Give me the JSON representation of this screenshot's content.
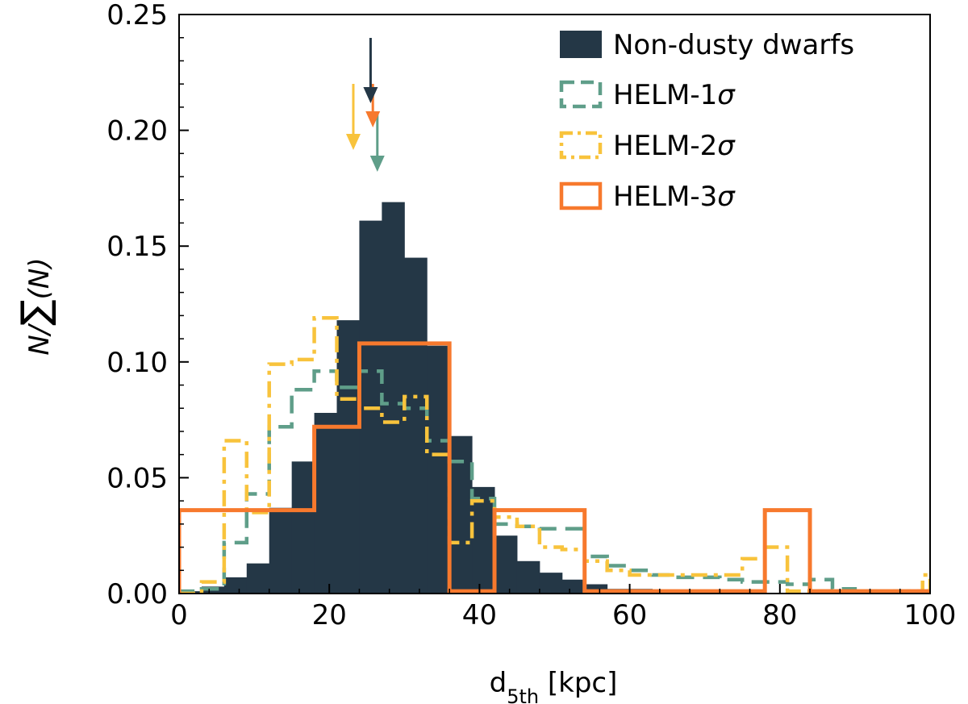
{
  "chart_data": {
    "type": "histogram",
    "xlabel_main": "d",
    "xlabel_sub": "5th",
    "xlabel_unit": " [kpc]",
    "ylabel_main": "N/",
    "ylabel_sum": "∑",
    "ylabel_tail": "(N)",
    "xlim": [
      0,
      100
    ],
    "ylim": [
      0,
      0.25
    ],
    "x_ticks": [
      "0",
      "20",
      "40",
      "60",
      "80",
      "100"
    ],
    "y_ticks": [
      "0.00",
      "0.05",
      "0.10",
      "0.15",
      "0.20",
      "0.25"
    ],
    "colors": {
      "dark": "#243746",
      "green": "#5f9e89",
      "yellow": "#f8c33c",
      "orange": "#f7792d"
    },
    "legend": [
      {
        "label": "Non-dusty dwarfs",
        "sigma": "",
        "style": "filled"
      },
      {
        "label": "HELM-1",
        "sigma": "σ",
        "style": "dashed"
      },
      {
        "label": "HELM-2",
        "sigma": "σ",
        "style": "dashdot"
      },
      {
        "label": "HELM-3",
        "sigma": "σ",
        "style": "solid"
      }
    ],
    "series": [
      {
        "name": "Non-dusty dwarfs",
        "style": "filled",
        "bin_edges": [
          0,
          3,
          6,
          9,
          12,
          15,
          18,
          21,
          24,
          27,
          30,
          33,
          36,
          39,
          42,
          45,
          48,
          51,
          54,
          57,
          60,
          63,
          66,
          69,
          72,
          75,
          78,
          81,
          84,
          87,
          90,
          93,
          96,
          99
        ],
        "values": [
          0.001,
          0.003,
          0.007,
          0.013,
          0.037,
          0.057,
          0.078,
          0.118,
          0.161,
          0.169,
          0.145,
          0.107,
          0.068,
          0.046,
          0.025,
          0.014,
          0.009,
          0.006,
          0.004,
          0.002,
          0.002,
          0.001,
          0.001,
          0.0005,
          0.0005,
          0,
          0,
          0,
          0,
          0,
          0,
          0,
          0
        ]
      },
      {
        "name": "HELM-1σ",
        "style": "dashed",
        "bin_edges": [
          0,
          3,
          6,
          9,
          12,
          15,
          18,
          21,
          24,
          27,
          30,
          33,
          36,
          39,
          42,
          45,
          48,
          51,
          54,
          57,
          60,
          63,
          66,
          69,
          72,
          75,
          78,
          81,
          84,
          87,
          90,
          93,
          96,
          99,
          100
        ],
        "values": [
          0.001,
          0.002,
          0.022,
          0.043,
          0.072,
          0.088,
          0.096,
          0.089,
          0.096,
          0.082,
          0.08,
          0.066,
          0.057,
          0.041,
          0.03,
          0.029,
          0.028,
          0.028,
          0.016,
          0.012,
          0.01,
          0.008,
          0.007,
          0.007,
          0.006,
          0.005,
          0.005,
          0.004,
          0.006,
          0.002,
          0.001,
          0.001,
          0.001,
          0.001
        ]
      },
      {
        "name": "HELM-2σ",
        "style": "dashdot",
        "bin_edges": [
          0,
          3,
          6,
          9,
          12,
          15,
          18,
          21,
          24,
          27,
          30,
          33,
          36,
          39,
          42,
          45,
          48,
          51,
          54,
          57,
          60,
          63,
          66,
          69,
          72,
          75,
          78,
          81,
          84,
          87,
          90,
          93,
          96,
          99,
          100
        ],
        "values": [
          0,
          0.005,
          0.066,
          0.035,
          0.099,
          0.101,
          0.119,
          0.084,
          0.08,
          0.074,
          0.085,
          0.06,
          0.022,
          0.04,
          0.033,
          0.029,
          0.02,
          0.019,
          0.014,
          0.01,
          0.008,
          0.008,
          0.008,
          0.008,
          0.008,
          0.015,
          0.02,
          0.001,
          0.001,
          0.001,
          0.001,
          0.001,
          0.001,
          0.008
        ]
      },
      {
        "name": "HELM-3σ",
        "style": "solid",
        "bin_edges": [
          0,
          18,
          24,
          36,
          42,
          54,
          78,
          84,
          100
        ],
        "values": [
          0.036,
          0.072,
          0.108,
          0.001,
          0.036,
          0.001,
          0.036,
          0.001
        ]
      }
    ],
    "arrows": [
      {
        "series": "Non-dusty dwarfs",
        "x": 25.5
      },
      {
        "series": "HELM-1σ",
        "x": 26.4
      },
      {
        "series": "HELM-2σ",
        "x": 23.2
      },
      {
        "series": "HELM-3σ",
        "x": 25.8
      }
    ]
  }
}
